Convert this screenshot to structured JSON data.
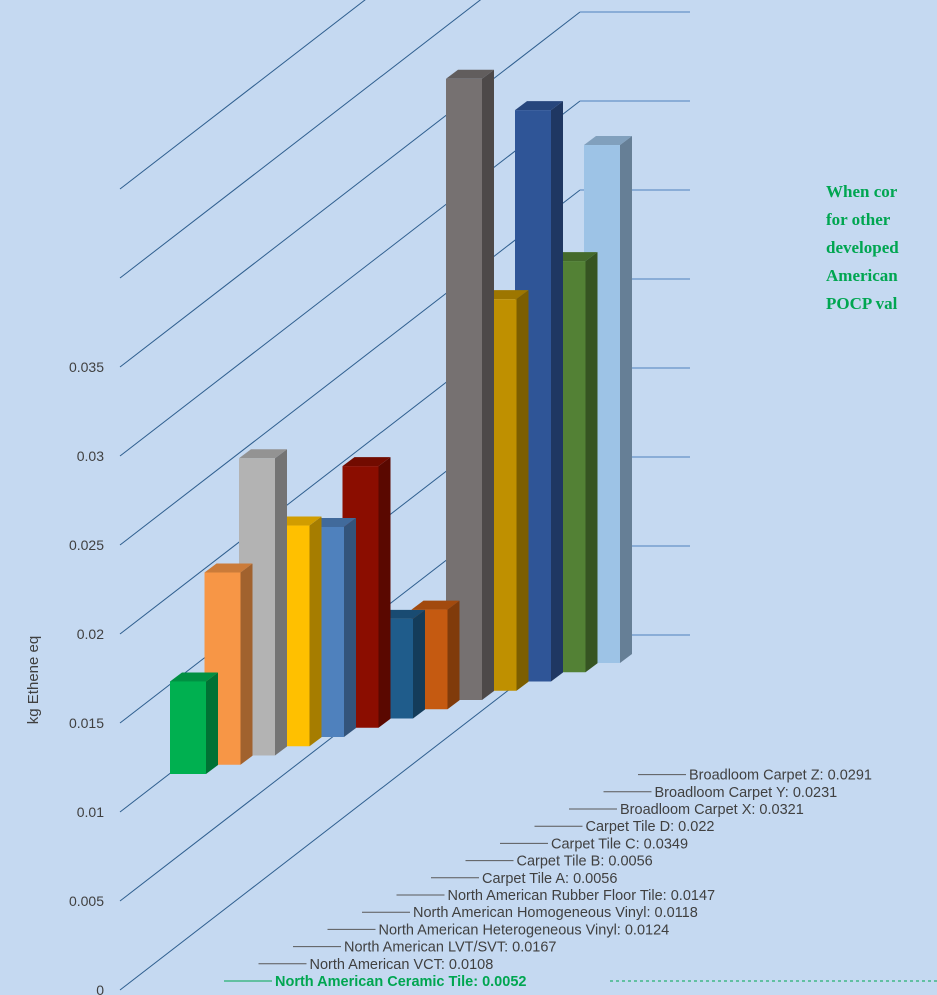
{
  "chart_data": {
    "type": "bar",
    "ylabel": "kg Ethene eq",
    "ylim": [
      0,
      0.045
    ],
    "yticks": [
      0,
      0.005,
      0.01,
      0.015,
      0.02,
      0.025,
      0.03,
      0.035
    ],
    "grid": true,
    "categories": [
      "North American Ceramic Tile",
      "North American VCT",
      "North American LVT/SVT",
      "North American Heterogeneous Vinyl",
      "North American Homogeneous Vinyl",
      "North American Rubber Floor Tile",
      "Carpet Tile A",
      "Carpet Tile B",
      "Carpet Tile C",
      "Carpet Tile D",
      "Broadloom Carpet  X",
      "Broadloom Carpet  Y",
      "Broadloom Carpet  Z"
    ],
    "labels": [
      "North American Ceramic Tile:  0.0052",
      "North American VCT:  0.0108",
      "North American LVT/SVT:  0.0167",
      "North American Heterogeneous Vinyl:  0.0124",
      "North American Homogeneous Vinyl:  0.0118",
      "North American Rubber Floor Tile:  0.0147",
      "Carpet Tile A:  0.0056",
      "Carpet Tile B:  0.0056",
      "Carpet Tile C:  0.0349",
      "Carpet Tile D:  0.022",
      "Broadloom Carpet  X:  0.0321",
      "Broadloom Carpet  Y:  0.0231",
      "Broadloom Carpet  Z:  0.0291"
    ],
    "values": [
      0.0052,
      0.0108,
      0.0167,
      0.0124,
      0.0118,
      0.0147,
      0.0056,
      0.0056,
      0.0349,
      0.022,
      0.0321,
      0.0231,
      0.0291
    ],
    "colors": [
      "#00b050",
      "#f79646",
      "#b3b3b3",
      "#ffc000",
      "#4f81bd",
      "#8b0d00",
      "#1f5c8b",
      "#c55a11",
      "#767171",
      "#bf9000",
      "#2f5597",
      "#538135",
      "#9dc3e6"
    ],
    "highlight_index": 0
  },
  "annotation": {
    "text": "When cor\nfor other\ndeveloped\nAmerican\nPOCP val"
  }
}
